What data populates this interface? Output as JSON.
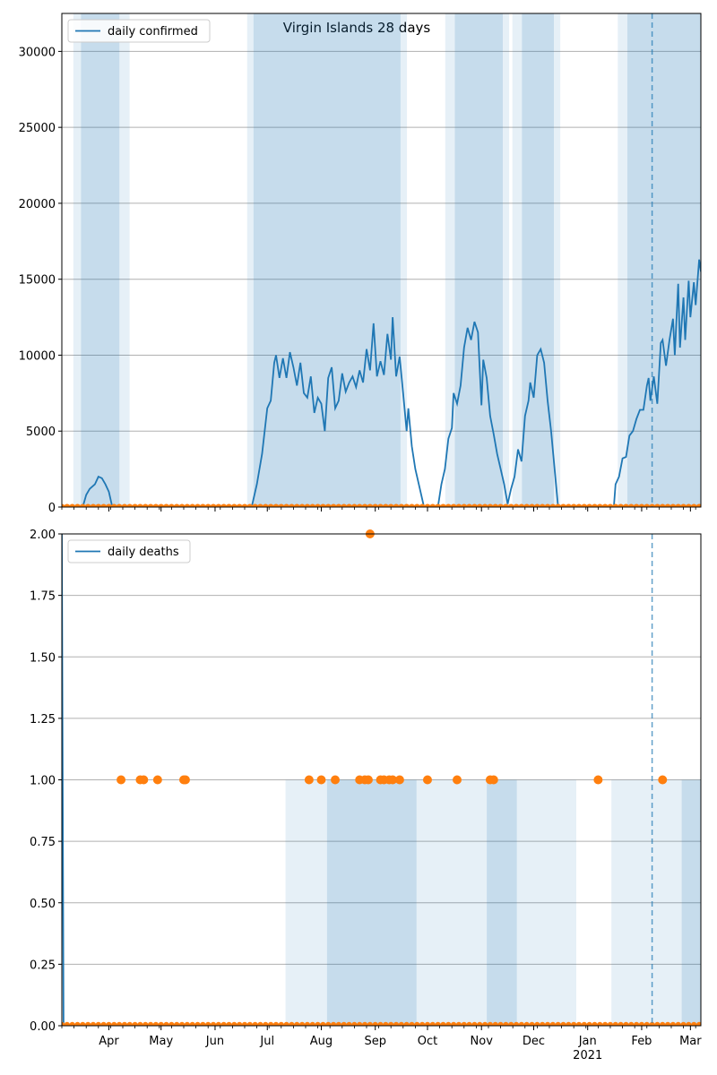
{
  "chart_data": [
    {
      "type": "line",
      "title": "Virgin Islands 28 days",
      "xlabel": "",
      "ylabel": "",
      "ylim": [
        0,
        32500
      ],
      "yticks": [
        0,
        5000,
        10000,
        15000,
        20000,
        25000,
        30000
      ],
      "grid": "y",
      "legend_position": "top-left",
      "x_range": [
        "2020-03-05",
        "2021-03-07"
      ],
      "marker_date": "2021-02-07",
      "series": [
        {
          "name": "daily confirmed",
          "color": "#1f77b4",
          "points": [
            [
              "2020-03-05",
              0
            ],
            [
              "2020-03-17",
              0
            ],
            [
              "2020-03-19",
              800
            ],
            [
              "2020-03-21",
              1200
            ],
            [
              "2020-03-24",
              1500
            ],
            [
              "2020-03-26",
              2000
            ],
            [
              "2020-03-28",
              1900
            ],
            [
              "2020-03-30",
              1500
            ],
            [
              "2020-04-01",
              1000
            ],
            [
              "2020-04-03",
              0
            ],
            [
              "2020-06-22",
              0
            ],
            [
              "2020-06-25",
              1500
            ],
            [
              "2020-06-28",
              3500
            ],
            [
              "2020-07-01",
              6500
            ],
            [
              "2020-07-03",
              7000
            ],
            [
              "2020-07-05",
              9500
            ],
            [
              "2020-07-06",
              10000
            ],
            [
              "2020-07-08",
              8500
            ],
            [
              "2020-07-10",
              9800
            ],
            [
              "2020-07-12",
              8500
            ],
            [
              "2020-07-14",
              10200
            ],
            [
              "2020-07-16",
              9200
            ],
            [
              "2020-07-18",
              8000
            ],
            [
              "2020-07-20",
              9500
            ],
            [
              "2020-07-22",
              7500
            ],
            [
              "2020-07-24",
              7200
            ],
            [
              "2020-07-26",
              8600
            ],
            [
              "2020-07-28",
              6200
            ],
            [
              "2020-07-30",
              7200
            ],
            [
              "2020-08-01",
              6800
            ],
            [
              "2020-08-03",
              5000
            ],
            [
              "2020-08-05",
              8500
            ],
            [
              "2020-08-07",
              9200
            ],
            [
              "2020-08-09",
              6500
            ],
            [
              "2020-08-11",
              7000
            ],
            [
              "2020-08-13",
              8800
            ],
            [
              "2020-08-15",
              7600
            ],
            [
              "2020-08-17",
              8200
            ],
            [
              "2020-08-19",
              8600
            ],
            [
              "2020-08-21",
              7900
            ],
            [
              "2020-08-23",
              9000
            ],
            [
              "2020-08-25",
              8200
            ],
            [
              "2020-08-27",
              10400
            ],
            [
              "2020-08-29",
              9000
            ],
            [
              "2020-08-31",
              12100
            ],
            [
              "2020-09-02",
              8600
            ],
            [
              "2020-09-04",
              9600
            ],
            [
              "2020-09-06",
              8700
            ],
            [
              "2020-09-08",
              11400
            ],
            [
              "2020-09-10",
              9700
            ],
            [
              "2020-09-11",
              12500
            ],
            [
              "2020-09-13",
              8600
            ],
            [
              "2020-09-15",
              9900
            ],
            [
              "2020-09-17",
              7500
            ],
            [
              "2020-09-19",
              5000
            ],
            [
              "2020-09-20",
              6500
            ],
            [
              "2020-09-22",
              4000
            ],
            [
              "2020-09-24",
              2500
            ],
            [
              "2020-09-26",
              1500
            ],
            [
              "2020-09-29",
              0
            ],
            [
              "2020-10-07",
              0
            ],
            [
              "2020-10-09",
              1500
            ],
            [
              "2020-10-11",
              2500
            ],
            [
              "2020-10-13",
              4500
            ],
            [
              "2020-10-15",
              5200
            ],
            [
              "2020-10-16",
              7500
            ],
            [
              "2020-10-18",
              6800
            ],
            [
              "2020-10-20",
              8000
            ],
            [
              "2020-10-22",
              10500
            ],
            [
              "2020-10-24",
              11800
            ],
            [
              "2020-10-26",
              11000
            ],
            [
              "2020-10-28",
              12200
            ],
            [
              "2020-10-30",
              11500
            ],
            [
              "2020-11-01",
              6700
            ],
            [
              "2020-11-02",
              9700
            ],
            [
              "2020-11-04",
              8500
            ],
            [
              "2020-11-06",
              6000
            ],
            [
              "2020-11-08",
              4800
            ],
            [
              "2020-11-10",
              3500
            ],
            [
              "2020-11-12",
              2500
            ],
            [
              "2020-11-14",
              1500
            ],
            [
              "2020-11-16",
              200
            ],
            [
              "2020-11-18",
              1200
            ],
            [
              "2020-11-20",
              2000
            ],
            [
              "2020-11-22",
              3800
            ],
            [
              "2020-11-24",
              3000
            ],
            [
              "2020-11-26",
              6000
            ],
            [
              "2020-11-28",
              7000
            ],
            [
              "2020-11-29",
              8200
            ],
            [
              "2020-12-01",
              7200
            ],
            [
              "2020-12-03",
              10000
            ],
            [
              "2020-12-05",
              10400
            ],
            [
              "2020-12-07",
              9500
            ],
            [
              "2020-12-09",
              7000
            ],
            [
              "2020-12-11",
              5000
            ],
            [
              "2020-12-13",
              2500
            ],
            [
              "2020-12-15",
              0
            ],
            [
              "2021-01-16",
              0
            ],
            [
              "2021-01-17",
              1500
            ],
            [
              "2021-01-19",
              2000
            ],
            [
              "2021-01-21",
              3200
            ],
            [
              "2021-01-23",
              3300
            ],
            [
              "2021-01-25",
              4700
            ],
            [
              "2021-01-27",
              5000
            ],
            [
              "2021-01-29",
              5800
            ],
            [
              "2021-01-31",
              6400
            ],
            [
              "2021-02-02",
              6400
            ],
            [
              "2021-02-04",
              8000
            ],
            [
              "2021-02-05",
              8500
            ],
            [
              "2021-02-06",
              7000
            ],
            [
              "2021-02-08",
              8600
            ],
            [
              "2021-02-10",
              6800
            ],
            [
              "2021-02-12",
              10800
            ],
            [
              "2021-02-13",
              11000
            ],
            [
              "2021-02-15",
              9300
            ],
            [
              "2021-02-17",
              11000
            ],
            [
              "2021-02-19",
              12400
            ],
            [
              "2021-02-20",
              10000
            ],
            [
              "2021-02-22",
              14700
            ],
            [
              "2021-02-23",
              10500
            ],
            [
              "2021-02-25",
              13800
            ],
            [
              "2021-02-26",
              11000
            ],
            [
              "2021-02-28",
              14900
            ],
            [
              "2021-03-01",
              12500
            ],
            [
              "2021-03-03",
              14800
            ],
            [
              "2021-03-04",
              13300
            ],
            [
              "2021-03-06",
              16300
            ],
            [
              "2021-03-07",
              15500
            ]
          ]
        },
        {
          "name": "",
          "color": "#ff7f0e",
          "points": [
            [
              "2020-03-05",
              20
            ],
            [
              "2021-03-07",
              20
            ]
          ]
        }
      ]
    },
    {
      "type": "line",
      "title": "",
      "xlabel": "",
      "ylabel": "",
      "ylim": [
        0,
        2.0
      ],
      "yticks": [
        0.0,
        0.25,
        0.5,
        0.75,
        1.0,
        1.25,
        1.5,
        1.75,
        2.0
      ],
      "grid": "y",
      "legend_position": "top-left",
      "x_range": [
        "2020-03-05",
        "2021-03-07"
      ],
      "marker_date": "2021-02-07",
      "series": [
        {
          "name": "daily deaths",
          "color": "#1f77b4",
          "points": [
            [
              "2020-03-05",
              2.0
            ],
            [
              "2020-03-06",
              0
            ],
            [
              "2021-03-07",
              0
            ]
          ]
        },
        {
          "name": "",
          "color": "#ff7f0e",
          "scatter": [
            [
              "2020-04-08",
              1
            ],
            [
              "2020-04-19",
              1
            ],
            [
              "2020-04-21",
              1
            ],
            [
              "2020-04-29",
              1
            ],
            [
              "2020-05-14",
              1
            ],
            [
              "2020-05-15",
              1
            ],
            [
              "2020-07-25",
              1
            ],
            [
              "2020-08-01",
              1
            ],
            [
              "2020-08-09",
              1
            ],
            [
              "2020-08-23",
              1
            ],
            [
              "2020-08-26",
              1
            ],
            [
              "2020-08-28",
              1
            ],
            [
              "2020-08-29",
              2
            ],
            [
              "2020-09-04",
              1
            ],
            [
              "2020-09-06",
              1
            ],
            [
              "2020-09-09",
              1
            ],
            [
              "2020-09-11",
              1
            ],
            [
              "2020-09-15",
              1
            ],
            [
              "2020-10-01",
              1
            ],
            [
              "2020-10-18",
              1
            ],
            [
              "2020-11-06",
              1
            ],
            [
              "2020-11-08",
              1
            ],
            [
              "2021-01-07",
              1
            ],
            [
              "2021-02-13",
              1
            ]
          ]
        }
      ]
    }
  ],
  "x_axis": {
    "tick_labels": [
      {
        "date": "2020-04-01",
        "label": "Apr"
      },
      {
        "date": "2020-05-01",
        "label": "May"
      },
      {
        "date": "2020-06-01",
        "label": "Jun"
      },
      {
        "date": "2020-07-01",
        "label": "Jul"
      },
      {
        "date": "2020-08-01",
        "label": "Aug"
      },
      {
        "date": "2020-09-01",
        "label": "Sep"
      },
      {
        "date": "2020-10-01",
        "label": "Oct"
      },
      {
        "date": "2020-11-01",
        "label": "Nov"
      },
      {
        "date": "2020-12-01",
        "label": "Dec"
      },
      {
        "date": "2021-01-01",
        "label": "Jan"
      },
      {
        "date": "2021-02-01",
        "label": "Feb"
      },
      {
        "date": "2021-03-01",
        "label": "Mar"
      }
    ],
    "year_label": {
      "date": "2021-01-01",
      "label": "2021"
    }
  }
}
